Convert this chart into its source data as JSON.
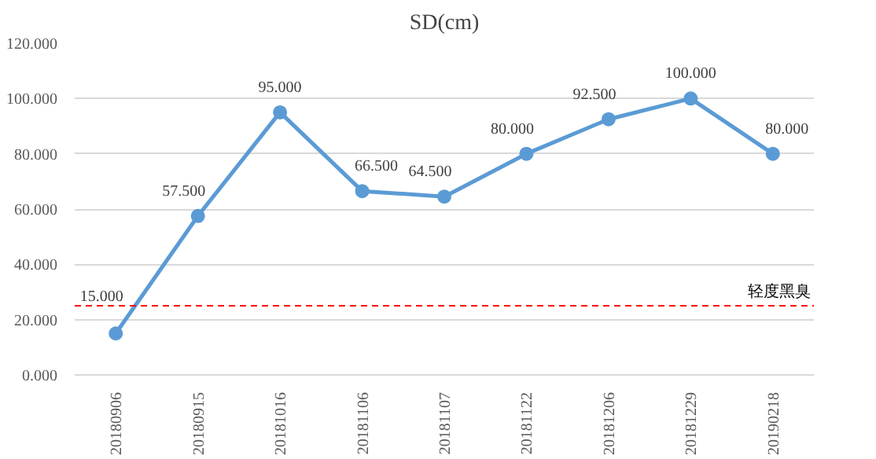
{
  "chart_data": {
    "type": "line",
    "title": "SD(cm)",
    "categories": [
      "20180906",
      "20180915",
      "20181016",
      "20181106",
      "20181107",
      "20181122",
      "20181206",
      "20181229",
      "20190218"
    ],
    "series": [
      {
        "color": "#5b9bd5",
        "values": [
          15,
          57.5,
          95,
          66.5,
          64.5,
          80,
          92.5,
          100,
          80
        ],
        "value_labels": [
          "15.000",
          "57.500",
          "95.000",
          "66.500",
          "64.500",
          "80.000",
          "92.500",
          "100.000",
          "80.000"
        ]
      }
    ],
    "ylim": [
      0,
      120
    ],
    "yticks": [
      {
        "value": 0,
        "label": "0.000"
      },
      {
        "value": 20,
        "label": "20.000"
      },
      {
        "value": 40,
        "label": "40.000"
      },
      {
        "value": 60,
        "label": "60.000"
      },
      {
        "value": 80,
        "label": "80.000"
      },
      {
        "value": 100,
        "label": "100.000"
      },
      {
        "value": 120,
        "label": "120.000"
      }
    ],
    "ref_lines": [
      {
        "axis": "y",
        "value": 25,
        "label": "轻度黑臭",
        "color": "#ff0000",
        "line_style": "dashed"
      }
    ],
    "grid": "y",
    "marker": "circle",
    "line_style": "solid"
  }
}
